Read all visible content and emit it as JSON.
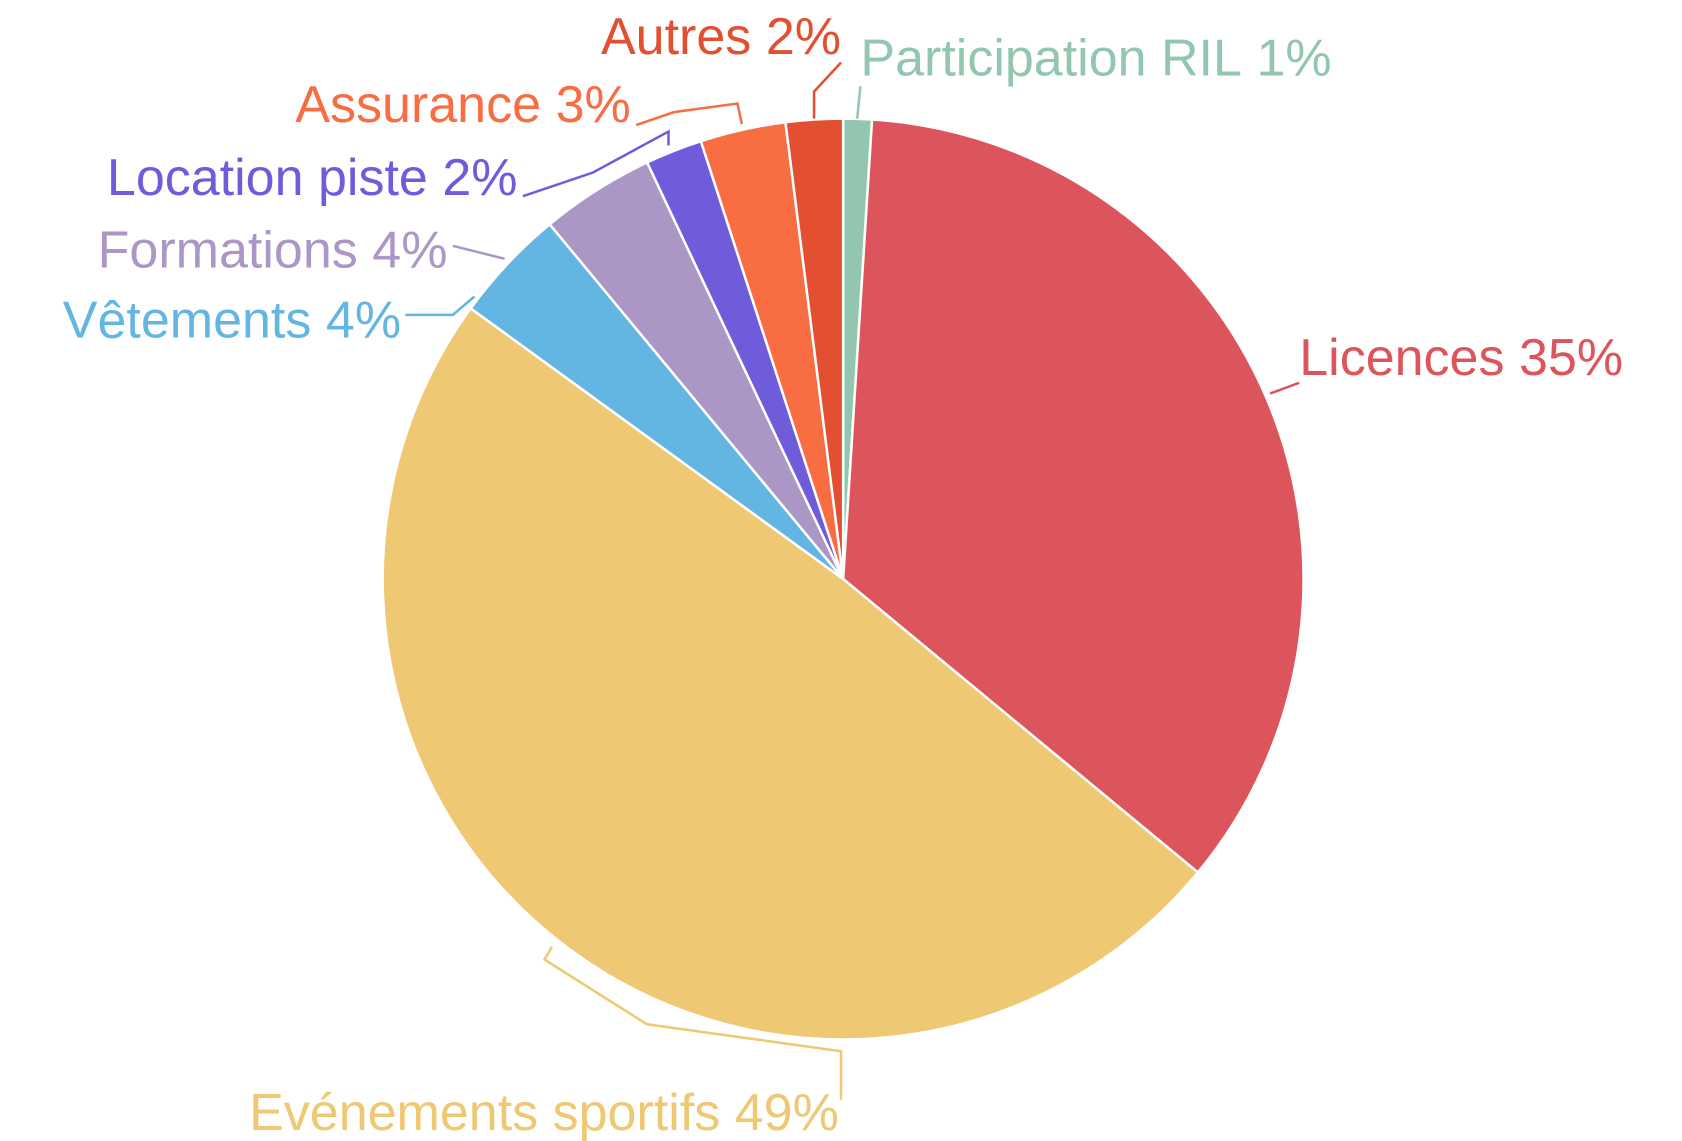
{
  "chart_data": {
    "type": "pie",
    "categories": [
      "Participation RIL",
      "Licences",
      "Evénements sportifs",
      "Vêtements",
      "Formations",
      "Location piste",
      "Assurance",
      "Autres"
    ],
    "values": [
      1,
      35,
      49,
      4,
      4,
      2,
      3,
      2
    ],
    "value_labels": [
      "1%",
      "35%",
      "49%",
      "4%",
      "4%",
      "2%",
      "3%",
      "2%"
    ],
    "colors": [
      "#93c6ae",
      "#dc555c",
      "#eec872",
      "#64b6e2",
      "#ab96c6",
      "#6e5cdb",
      "#f96d42",
      "#e24f31"
    ]
  }
}
